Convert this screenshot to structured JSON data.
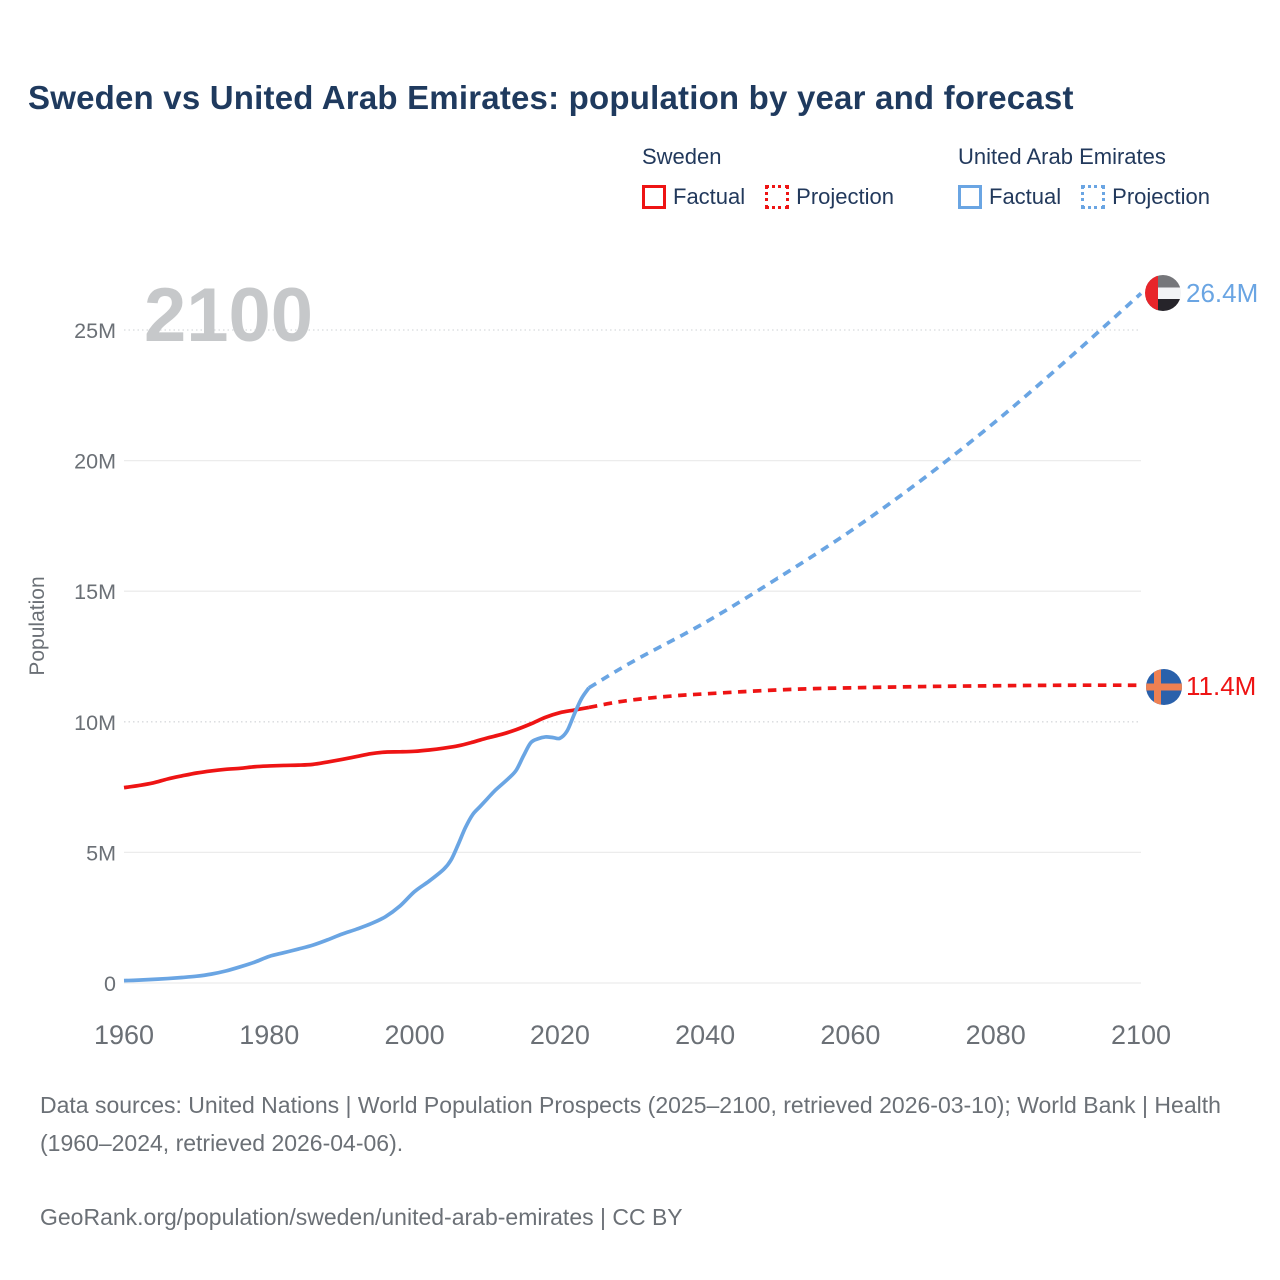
{
  "title": "Sweden vs United Arab Emirates: population by year and forecast",
  "watermark": "2100",
  "legend": {
    "groups": [
      {
        "name": "Sweden",
        "items": [
          {
            "label": "Factual",
            "style": "solid",
            "color": "#ee1414"
          },
          {
            "label": "Projection",
            "style": "dotted",
            "color": "#ee1414"
          }
        ]
      },
      {
        "name": "United Arab Emirates",
        "items": [
          {
            "label": "Factual",
            "style": "solid",
            "color": "#6aa5e3"
          },
          {
            "label": "Projection",
            "style": "dotted",
            "color": "#6aa5e3"
          }
        ]
      }
    ]
  },
  "footer": {
    "sources": "Data sources: United Nations | World Population Prospects (2025–2100, retrieved 2026-03-10); World Bank | Health (1960–2024, retrieved 2026-04-06).",
    "attribution": "GeoRank.org/population/sweden/united-arab-emirates | CC BY"
  },
  "chart_data": {
    "type": "line",
    "title": "Sweden vs United Arab Emirates: population by year and forecast",
    "xlabel": "",
    "ylabel": "Population",
    "xlim": [
      1960,
      2100
    ],
    "ylim": [
      0,
      27
    ],
    "grid": "horizontal",
    "legend_position": "top-right",
    "x_ticks": [
      1960,
      1980,
      2000,
      2020,
      2040,
      2060,
      2080,
      2100
    ],
    "y_ticks": [
      {
        "value": 0,
        "label": "0"
      },
      {
        "value": 5,
        "label": "5M"
      },
      {
        "value": 10,
        "label": "10M"
      },
      {
        "value": 15,
        "label": "15M"
      },
      {
        "value": 20,
        "label": "20M"
      },
      {
        "value": 25,
        "label": "25M"
      }
    ],
    "dotted_gridline_values": [
      10,
      25
    ],
    "units": "millions of people",
    "series": [
      {
        "name": "Sweden Factual",
        "color": "#ee1414",
        "style": "solid",
        "points": [
          [
            1960,
            7.48
          ],
          [
            1962,
            7.56
          ],
          [
            1964,
            7.66
          ],
          [
            1966,
            7.81
          ],
          [
            1968,
            7.93
          ],
          [
            1970,
            8.04
          ],
          [
            1972,
            8.12
          ],
          [
            1974,
            8.18
          ],
          [
            1976,
            8.22
          ],
          [
            1978,
            8.28
          ],
          [
            1980,
            8.31
          ],
          [
            1982,
            8.33
          ],
          [
            1984,
            8.34
          ],
          [
            1986,
            8.37
          ],
          [
            1988,
            8.46
          ],
          [
            1990,
            8.56
          ],
          [
            1992,
            8.67
          ],
          [
            1994,
            8.78
          ],
          [
            1996,
            8.84
          ],
          [
            1998,
            8.85
          ],
          [
            2000,
            8.87
          ],
          [
            2002,
            8.92
          ],
          [
            2004,
            8.99
          ],
          [
            2006,
            9.08
          ],
          [
            2008,
            9.22
          ],
          [
            2010,
            9.38
          ],
          [
            2012,
            9.52
          ],
          [
            2014,
            9.7
          ],
          [
            2016,
            9.92
          ],
          [
            2018,
            10.17
          ],
          [
            2020,
            10.35
          ],
          [
            2022,
            10.45
          ],
          [
            2024,
            10.55
          ]
        ]
      },
      {
        "name": "Sweden Projection",
        "color": "#ee1414",
        "style": "dashed",
        "points": [
          [
            2024,
            10.55
          ],
          [
            2028,
            10.76
          ],
          [
            2032,
            10.9
          ],
          [
            2036,
            11.0
          ],
          [
            2040,
            11.07
          ],
          [
            2045,
            11.15
          ],
          [
            2050,
            11.22
          ],
          [
            2055,
            11.27
          ],
          [
            2060,
            11.3
          ],
          [
            2070,
            11.35
          ],
          [
            2080,
            11.38
          ],
          [
            2090,
            11.4
          ],
          [
            2100,
            11.4
          ]
        ]
      },
      {
        "name": "United Arab Emirates Factual",
        "color": "#6aa5e3",
        "style": "solid",
        "points": [
          [
            1960,
            0.09
          ],
          [
            1962,
            0.11
          ],
          [
            1964,
            0.14
          ],
          [
            1966,
            0.17
          ],
          [
            1968,
            0.21
          ],
          [
            1970,
            0.26
          ],
          [
            1972,
            0.34
          ],
          [
            1974,
            0.46
          ],
          [
            1976,
            0.62
          ],
          [
            1978,
            0.8
          ],
          [
            1980,
            1.02
          ],
          [
            1982,
            1.16
          ],
          [
            1984,
            1.3
          ],
          [
            1986,
            1.45
          ],
          [
            1988,
            1.65
          ],
          [
            1990,
            1.87
          ],
          [
            1992,
            2.06
          ],
          [
            1994,
            2.27
          ],
          [
            1996,
            2.54
          ],
          [
            1998,
            2.95
          ],
          [
            2000,
            3.5
          ],
          [
            2002,
            3.9
          ],
          [
            2004,
            4.35
          ],
          [
            2005,
            4.7
          ],
          [
            2006,
            5.3
          ],
          [
            2007,
            5.95
          ],
          [
            2008,
            6.45
          ],
          [
            2009,
            6.75
          ],
          [
            2010,
            7.05
          ],
          [
            2011,
            7.35
          ],
          [
            2012,
            7.6
          ],
          [
            2013,
            7.85
          ],
          [
            2014,
            8.15
          ],
          [
            2015,
            8.7
          ],
          [
            2016,
            9.2
          ],
          [
            2017,
            9.35
          ],
          [
            2018,
            9.42
          ],
          [
            2019,
            9.4
          ],
          [
            2020,
            9.37
          ],
          [
            2021,
            9.65
          ],
          [
            2022,
            10.3
          ],
          [
            2023,
            10.9
          ],
          [
            2024,
            11.3
          ]
        ]
      },
      {
        "name": "United Arab Emirates Projection",
        "color": "#6aa5e3",
        "style": "dashed",
        "points": [
          [
            2024,
            11.3
          ],
          [
            2030,
            12.3
          ],
          [
            2040,
            13.8
          ],
          [
            2050,
            15.5
          ],
          [
            2060,
            17.3
          ],
          [
            2070,
            19.3
          ],
          [
            2080,
            21.5
          ],
          [
            2090,
            23.9
          ],
          [
            2100,
            26.4
          ]
        ]
      }
    ],
    "annotations": [
      {
        "text": "26.4M",
        "series": "United Arab Emirates",
        "x": 2100,
        "y": 26.4,
        "color": "#6aa5e3"
      },
      {
        "text": "11.4M",
        "series": "Sweden",
        "x": 2100,
        "y": 11.4,
        "color": "#ee1414"
      }
    ]
  }
}
